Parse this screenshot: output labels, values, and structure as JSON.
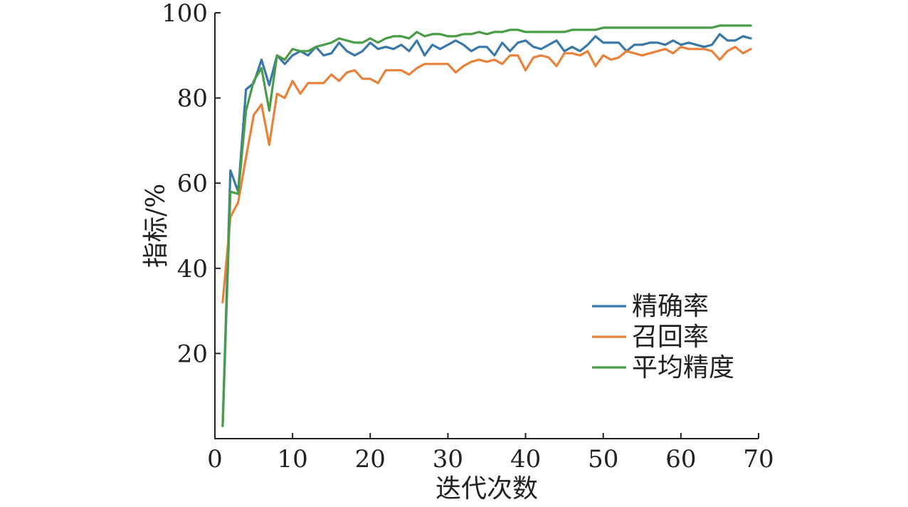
{
  "chart_data": {
    "type": "line",
    "xlabel": "迭代次数",
    "ylabel": "指标/%",
    "xlim": [
      0,
      70
    ],
    "ylim": [
      0,
      100
    ],
    "xticks": [
      0,
      10,
      20,
      30,
      40,
      50,
      60,
      70
    ],
    "yticks": [
      20,
      40,
      60,
      80,
      100
    ],
    "grid": false,
    "legend_position": "bottom-right",
    "x": [
      1,
      2,
      3,
      4,
      5,
      6,
      7,
      8,
      9,
      10,
      11,
      12,
      13,
      14,
      15,
      16,
      17,
      18,
      19,
      20,
      21,
      22,
      23,
      24,
      25,
      26,
      27,
      28,
      29,
      30,
      31,
      32,
      33,
      34,
      35,
      36,
      37,
      38,
      39,
      40,
      41,
      42,
      43,
      44,
      45,
      46,
      47,
      48,
      49,
      50,
      51,
      52,
      53,
      54,
      55,
      56,
      57,
      58,
      59,
      60,
      61,
      62,
      63,
      64,
      65,
      66,
      67,
      68,
      69
    ],
    "series": [
      {
        "name": "精确率",
        "color": "#3a78a8",
        "values": [
          3,
          63,
          58,
          82,
          83.5,
          89,
          83,
          90,
          88,
          90,
          91,
          90,
          92,
          90,
          90.5,
          93,
          91,
          90,
          91,
          93,
          91.5,
          92,
          91.5,
          92.5,
          91,
          93.5,
          90,
          92.5,
          91.5,
          92.5,
          93.5,
          92.5,
          91,
          92,
          92,
          90,
          93,
          91,
          93,
          93.5,
          92,
          91.5,
          92.5,
          93.5,
          91,
          92,
          91,
          92.5,
          94.5,
          93,
          93,
          93,
          91,
          92.5,
          92.5,
          93,
          93,
          92.5,
          93.5,
          92.5,
          93,
          92.5,
          92,
          92.5,
          95,
          93.5,
          93.5,
          94.5,
          94
        ]
      },
      {
        "name": "召回率",
        "color": "#e8823a",
        "values": [
          32,
          52,
          55.5,
          66,
          76,
          78.5,
          69,
          81,
          80,
          84,
          81,
          83.5,
          83.5,
          83.5,
          85.5,
          84,
          86,
          86.5,
          84.5,
          84.5,
          83.5,
          86.5,
          86.5,
          86.5,
          85.5,
          87,
          88,
          88,
          88,
          88,
          86,
          87.5,
          88.5,
          89,
          88.5,
          89,
          88,
          90,
          90,
          86.5,
          89.5,
          90,
          89.5,
          87.5,
          90.5,
          90.5,
          90,
          91,
          87.5,
          90,
          89,
          89.5,
          91,
          90.5,
          90,
          90.5,
          91,
          91.5,
          90.5,
          92,
          91.5,
          91.5,
          91.5,
          91,
          89,
          91,
          92,
          90.5,
          91.5
        ]
      },
      {
        "name": "平均精度",
        "color": "#4a9c48",
        "values": [
          3,
          58,
          57.5,
          77,
          84,
          87,
          77,
          90,
          89,
          91.5,
          91,
          91,
          92,
          92.5,
          93,
          94,
          93.5,
          93,
          93,
          94,
          93,
          94,
          94.5,
          94.5,
          94,
          95.5,
          94.5,
          95,
          95,
          94.5,
          94.5,
          95,
          95,
          95.5,
          95,
          95.5,
          95.5,
          96,
          96,
          95.5,
          95.5,
          95.5,
          95.5,
          95.5,
          95.5,
          96,
          96,
          96,
          96,
          96.5,
          96.5,
          96.5,
          96.5,
          96.5,
          96.5,
          96.5,
          96.5,
          96.5,
          96.5,
          96.5,
          96.5,
          96.5,
          96.5,
          96.5,
          97,
          97,
          97,
          97,
          97
        ]
      }
    ]
  }
}
